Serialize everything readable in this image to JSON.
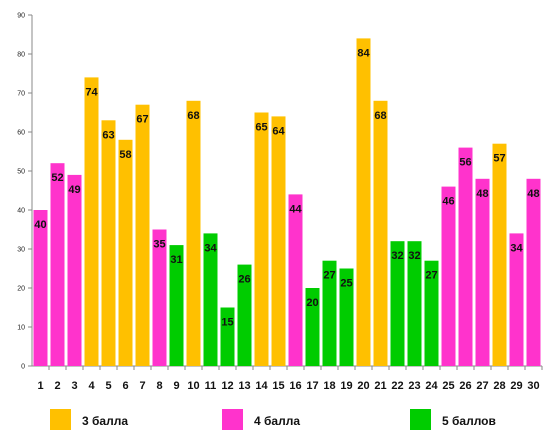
{
  "chart_data": {
    "type": "bar",
    "title": "",
    "xlabel": "",
    "ylabel": "",
    "ylim": [
      0,
      90
    ],
    "yticks": [
      0,
      10,
      20,
      30,
      40,
      50,
      60,
      70,
      80,
      90
    ],
    "grid": false,
    "legend_position": "bottom",
    "categories": [
      "1",
      "2",
      "3",
      "4",
      "5",
      "6",
      "7",
      "8",
      "9",
      "10",
      "11",
      "12",
      "13",
      "14",
      "15",
      "16",
      "17",
      "18",
      "19",
      "20",
      "21",
      "22",
      "23",
      "24",
      "25",
      "26",
      "27",
      "28",
      "29",
      "30"
    ],
    "values": [
      40,
      52,
      49,
      74,
      63,
      58,
      67,
      35,
      31,
      68,
      34,
      15,
      26,
      65,
      64,
      44,
      20,
      27,
      25,
      84,
      68,
      32,
      32,
      27,
      46,
      56,
      48,
      57,
      34,
      48
    ],
    "groups": [
      "4 балла",
      "4 балла",
      "4 балла",
      "3 балла",
      "3 балла",
      "3 балла",
      "3 балла",
      "4 балла",
      "5 баллов",
      "3 балла",
      "5 баллов",
      "5 баллов",
      "5 баллов",
      "3 балла",
      "3 балла",
      "4 балла",
      "5 баллов",
      "5 баллов",
      "5 баллов",
      "3 балла",
      "3 балла",
      "5 баллов",
      "5 баллов",
      "5 баллов",
      "4 балла",
      "4 балла",
      "4 балла",
      "3 балла",
      "4 балла",
      "4 балла"
    ],
    "data_labels": [
      "40",
      "52",
      "49",
      "74",
      "63",
      "58",
      "67",
      "35",
      "31",
      "68",
      "34",
      "15",
      "26",
      "65",
      "64",
      "44",
      "20",
      "27",
      "25",
      "84",
      "68",
      "32",
      "32",
      "27",
      "46",
      "56",
      "48",
      "57",
      "34",
      "48"
    ],
    "legend": [
      {
        "name": "3 балла",
        "color": "#FFC000"
      },
      {
        "name": "4 балла",
        "color": "#FF33CC"
      },
      {
        "name": "5 баллов",
        "color": "#00CC00"
      }
    ]
  }
}
